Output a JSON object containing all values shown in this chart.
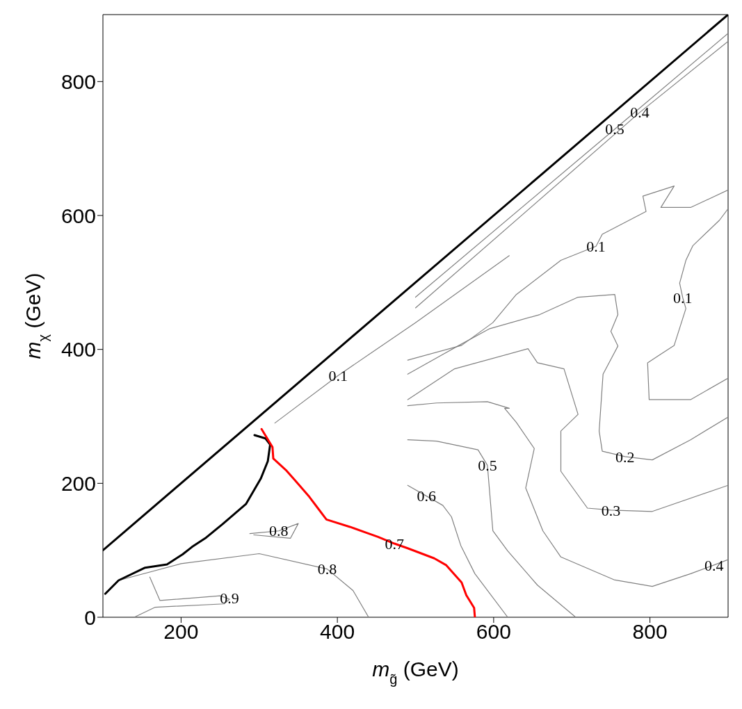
{
  "chart_data": {
    "type": "line",
    "xlabel": "m$_{g̃}$ (GeV)",
    "ylabel": "m$_{χ}$ (GeV)",
    "xlim": [
      100,
      900
    ],
    "xticks": [
      200,
      400,
      600,
      800
    ],
    "ylim": [
      0,
      900
    ],
    "yticks": [
      0,
      200,
      400,
      600,
      800
    ],
    "grid": false,
    "marker": "none",
    "line_style": "solid",
    "series": [
      {
        "color": "#000000",
        "x": [
          100,
          900
        ],
        "values": [
          100,
          900
        ]
      },
      {
        "color": "#808080",
        "x": [
          900,
          852,
          814,
          831,
          791,
          795,
          739,
          731,
          686,
          629,
          599,
          559,
          490
        ],
        "values": [
          638,
          612,
          612,
          644,
          629,
          606,
          572,
          554,
          533,
          482,
          440,
          406,
          384
        ]
      },
      {
        "color": "#808080",
        "x": [
          900,
          852,
          799,
          797,
          831,
          846,
          842,
          838,
          846,
          855,
          889,
          900
        ],
        "values": [
          357,
          325,
          325,
          380,
          406,
          461,
          477,
          499,
          533,
          555,
          593,
          610
        ]
      },
      {
        "color": "#808080",
        "x": [
          900,
          852,
          803,
          768,
          739,
          735,
          740,
          759,
          750,
          759,
          755,
          708,
          659,
          595,
          554,
          490
        ],
        "values": [
          299,
          265,
          235,
          240,
          248,
          278,
          363,
          405,
          427,
          452,
          482,
          478,
          452,
          431,
          405,
          363
        ]
      },
      {
        "color": "#808080",
        "x": [
          900,
          803,
          750,
          720,
          686,
          686,
          708,
          690,
          656,
          644,
          550,
          490
        ],
        "values": [
          197,
          158,
          160,
          163,
          218,
          278,
          303,
          371,
          380,
          401,
          371,
          325
        ]
      },
      {
        "color": "#808080",
        "x": [
          900,
          882,
          852,
          803,
          754,
          686,
          663,
          641,
          652,
          629,
          614,
          620,
          592,
          527,
          490
        ],
        "values": [
          86,
          78,
          65,
          46,
          56,
          90,
          129,
          193,
          252,
          291,
          312,
          312,
          322,
          320,
          316
        ]
      },
      {
        "color": "#808080",
        "x": [
          490,
          527,
          580,
          592,
          599,
          618,
          656,
          705
        ],
        "values": [
          265,
          263,
          250,
          227,
          129,
          99,
          48,
          0
        ]
      },
      {
        "color": "#808080",
        "x": [
          490,
          514,
          535,
          546,
          558,
          576,
          618
        ],
        "values": [
          197,
          181,
          167,
          150,
          107,
          65,
          0
        ]
      },
      {
        "color": "#808080",
        "x": [
          500,
          755,
          900
        ],
        "values": [
          478,
          729,
          872
        ]
      },
      {
        "color": "#808080",
        "x": [
          500,
          787,
          900
        ],
        "values": [
          462,
          754,
          860
        ]
      },
      {
        "color": "#808080",
        "x": [
          320,
          401,
          500,
          620
        ],
        "values": [
          290,
          361,
          440,
          540
        ]
      },
      {
        "color": "#7c7c7c",
        "x": [
          288,
          325,
          350,
          340,
          293
        ],
        "values": [
          125,
          129,
          140,
          118,
          123
        ]
      },
      {
        "color": "#7e7e7e",
        "x": [
          120,
          200,
          300,
          387,
          420,
          440
        ],
        "values": [
          55,
          80,
          95,
          72,
          40,
          0
        ]
      },
      {
        "color": "#828282",
        "x": [
          160,
          173,
          250,
          262,
          255,
          167,
          140
        ],
        "values": [
          60,
          25,
          32,
          27,
          20,
          15,
          0
        ]
      },
      {
        "color": "#000000",
        "x": [
          103,
          120,
          154,
          182,
          202,
          214,
          231,
          253,
          283,
          302,
          311,
          314,
          308,
          294
        ],
        "values": [
          35,
          55,
          74,
          79,
          94,
          105,
          118,
          139,
          169,
          207,
          233,
          258,
          267,
          272
        ]
      },
      {
        "color": "#ff0000",
        "x": [
          303,
          317,
          318,
          334,
          347,
          364,
          375,
          386,
          416,
          452,
          473,
          490,
          524,
          539,
          559,
          565,
          575,
          576
        ],
        "values": [
          281,
          254,
          237,
          220,
          203,
          180,
          163,
          146,
          135,
          120,
          110,
          103,
          88,
          78,
          52,
          33,
          14,
          0
        ]
      }
    ],
    "annotations": [
      {
        "text": "0.1",
        "x": 401,
        "y": 361
      },
      {
        "text": "0.1",
        "x": 731,
        "y": 554
      },
      {
        "text": "0.1",
        "x": 842,
        "y": 477
      },
      {
        "text": "0.2",
        "x": 768,
        "y": 240
      },
      {
        "text": "0.3",
        "x": 750,
        "y": 160
      },
      {
        "text": "0.4",
        "x": 882,
        "y": 78
      },
      {
        "text": "0.5",
        "x": 592,
        "y": 227
      },
      {
        "text": "0.6",
        "x": 514,
        "y": 181
      },
      {
        "text": "0.7",
        "x": 473,
        "y": 110
      },
      {
        "text": "0.8",
        "x": 325,
        "y": 129
      },
      {
        "text": "0.8",
        "x": 387,
        "y": 72
      },
      {
        "text": "0.9",
        "x": 262,
        "y": 29
      },
      {
        "text": "0.5",
        "x": 755,
        "y": 729
      },
      {
        "text": "0.4",
        "x": 787,
        "y": 754
      }
    ]
  }
}
